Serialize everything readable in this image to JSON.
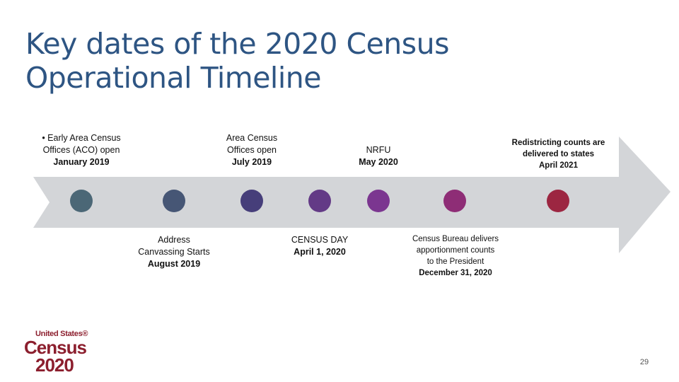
{
  "title": {
    "line1": "Key dates of the 2020 Census",
    "line2": "Operational Timeline"
  },
  "colors": {
    "title": "#2e5583",
    "arrow": "#d3d5d8",
    "milestones": [
      "#4b6776",
      "#465675",
      "#463e7a",
      "#633a86",
      "#7b3690",
      "#8e2d76",
      "#9c2641"
    ]
  },
  "milestones": [
    {
      "lines": [
        "• Early Area Census",
        "Offices (ACO) open"
      ],
      "date": "January 2019",
      "position": "above"
    },
    {
      "lines": [
        "Address",
        "Canvassing Starts"
      ],
      "date": "August 2019",
      "position": "below"
    },
    {
      "lines": [
        "Area Census",
        "Offices open"
      ],
      "date": "July 2019",
      "position": "above"
    },
    {
      "lines": [
        "CENSUS DAY"
      ],
      "date": "April 1, 2020",
      "position": "below"
    },
    {
      "lines": [
        "NRFU"
      ],
      "date": "May 2020",
      "position": "above"
    },
    {
      "lines": [
        "Census Bureau delivers",
        "apportionment counts",
        "to the President"
      ],
      "date": "December 31, 2020",
      "position": "below"
    },
    {
      "lines": [
        "Redistricting counts are",
        "delivered to states"
      ],
      "date": "April 2021",
      "position": "above"
    }
  ],
  "logo": {
    "line1": "United States®",
    "line2": "Census",
    "line3": "2020"
  },
  "page_number": "29"
}
